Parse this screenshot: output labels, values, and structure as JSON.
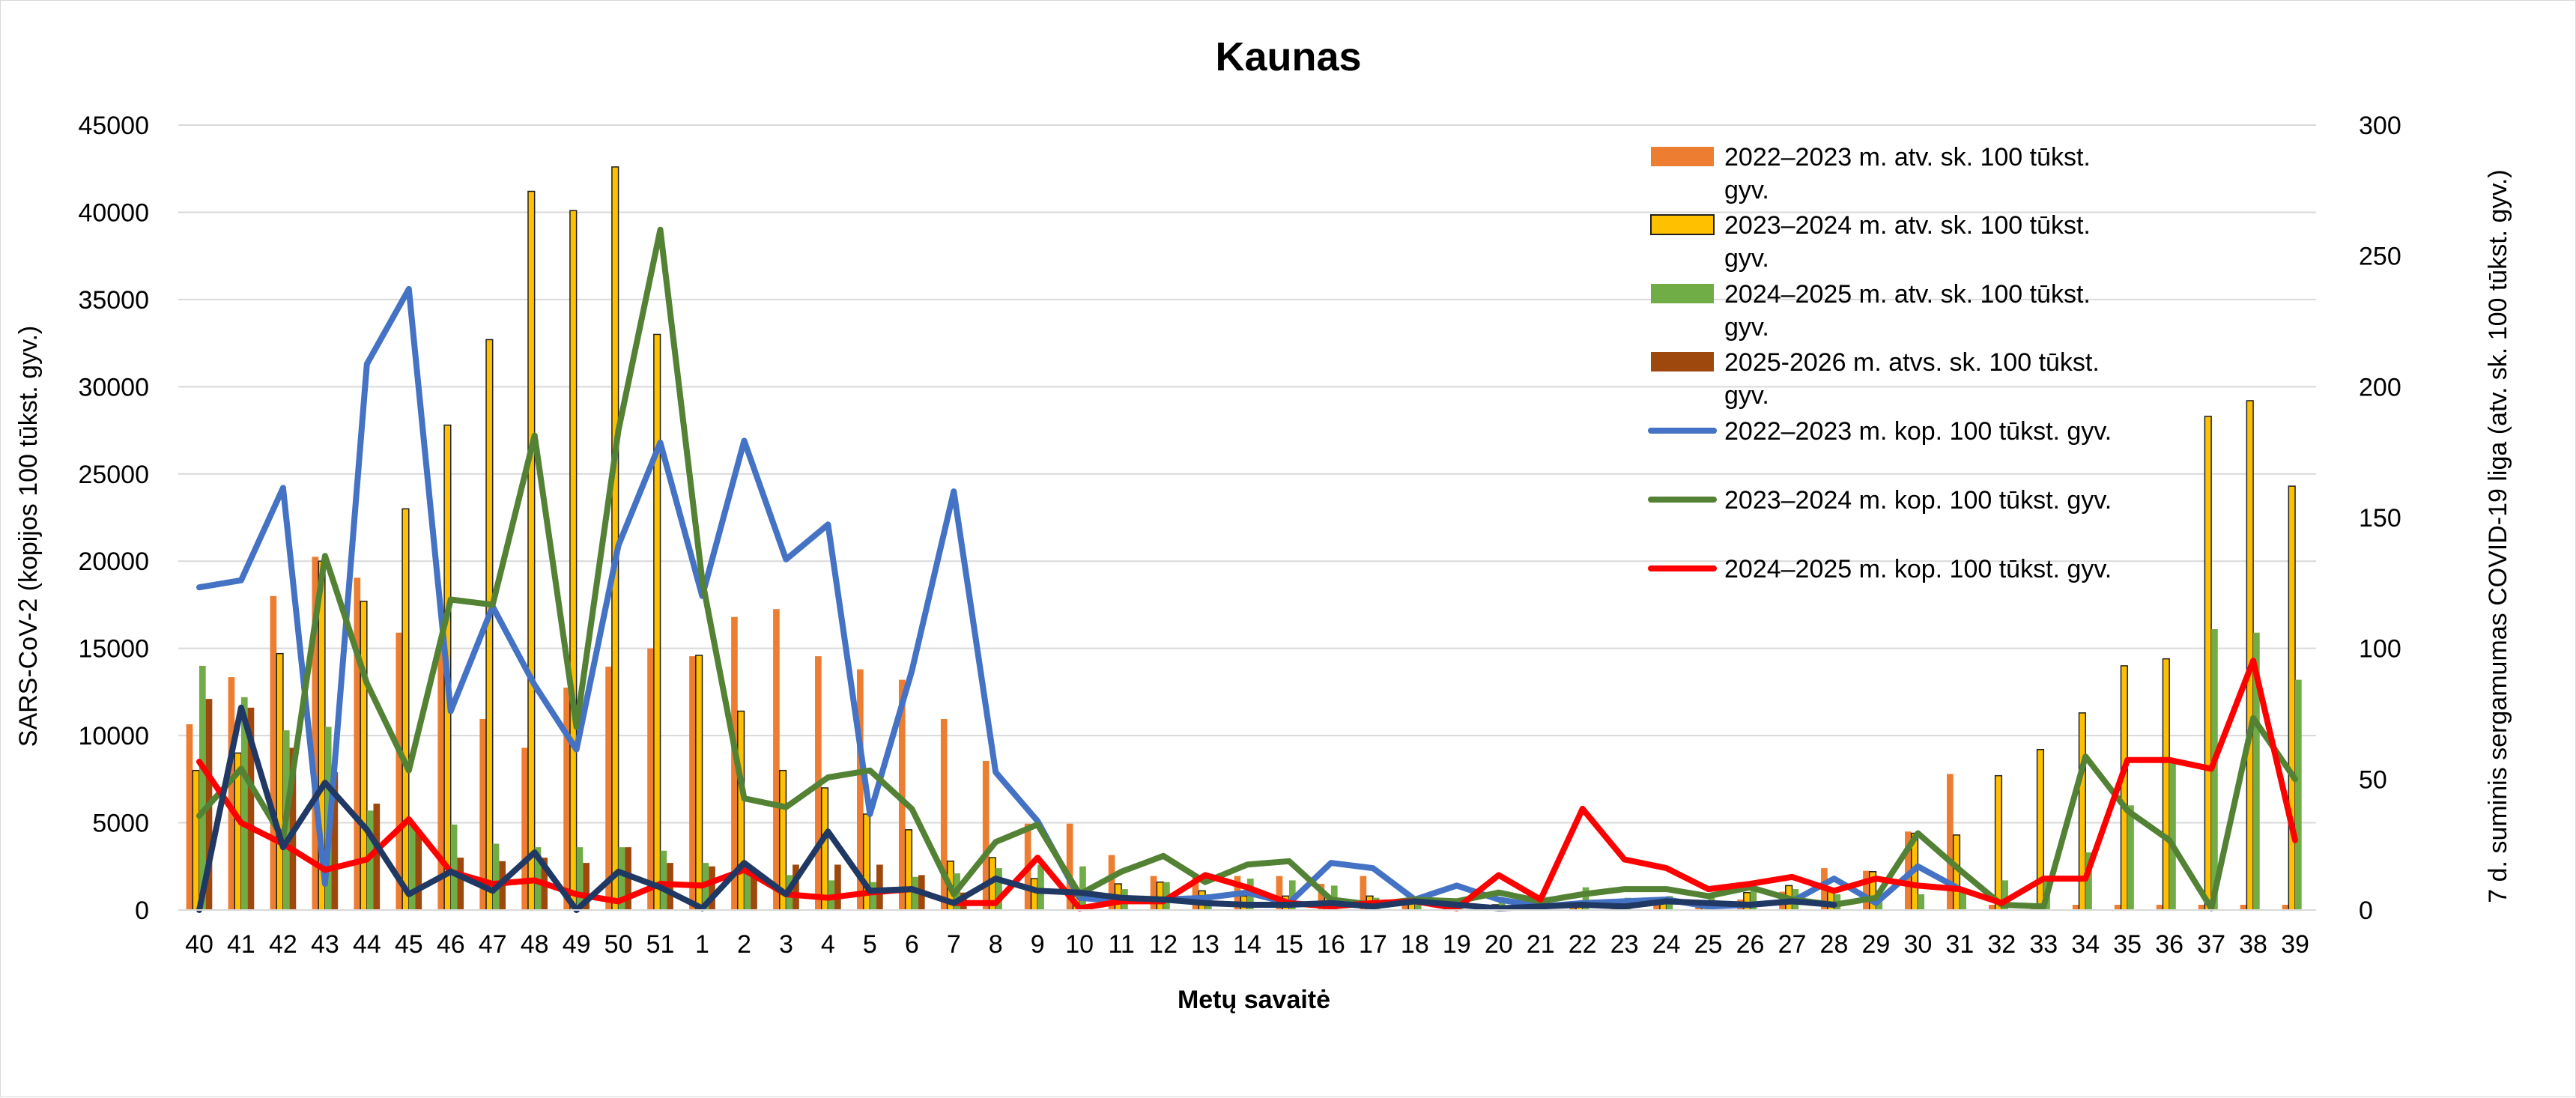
{
  "chart_data": {
    "type": "bar",
    "title": "Kaunas",
    "xlabel": "Metų savaitė",
    "ylabel": "SARS-CoV-2  (kopijos 100 tūkst. gyv.)",
    "y2label": "7 d. suminis sergamumas COVID-19 liga (atv. sk. 100 tūkst. gyv.)",
    "ylim": [
      0,
      45000
    ],
    "y2lim": [
      0,
      300
    ],
    "yticks": [
      "0",
      "5000",
      "10000",
      "15000",
      "20000",
      "25000",
      "30000",
      "35000",
      "40000",
      "45000"
    ],
    "y2ticks": [
      "0",
      "50",
      "100",
      "150",
      "200",
      "250",
      "300"
    ],
    "grid": true,
    "legend_position": "top-right",
    "categories": [
      "40",
      "41",
      "42",
      "43",
      "44",
      "45",
      "46",
      "47",
      "48",
      "49",
      "50",
      "51",
      "1",
      "2",
      "3",
      "4",
      "5",
      "6",
      "7",
      "8",
      "9",
      "10",
      "11",
      "12",
      "13",
      "14",
      "15",
      "16",
      "17",
      "18",
      "19",
      "20",
      "21",
      "22",
      "23",
      "24",
      "25",
      "26",
      "27",
      "28",
      "29",
      "30",
      "31",
      "32",
      "33",
      "34",
      "35",
      "36",
      "37",
      "38",
      "39"
    ],
    "bar_series": [
      {
        "name": "2022–2023 m. atv. sk. 100 tūkst. gyv.",
        "color": "#ed7d31",
        "axis": "right",
        "values": [
          71,
          89,
          120,
          135,
          127,
          106,
          102,
          73,
          62,
          85,
          93,
          100,
          97,
          112,
          115,
          97,
          92,
          88,
          73,
          57,
          33,
          33,
          21,
          13,
          13,
          13,
          13,
          10,
          13,
          3,
          3,
          2,
          2,
          2,
          2,
          3,
          3,
          4,
          7,
          16,
          15,
          30,
          52,
          2,
          2,
          2,
          2,
          2,
          2,
          2,
          2
        ]
      },
      {
        "name": "2023–2024 m. atv. sk. 100 tūkst. gyv.",
        "color": "#ffc000",
        "edge": "#1f1f1f",
        "axis": "left",
        "values": [
          8000,
          9000,
          14700,
          20000,
          17700,
          23000,
          27800,
          32700,
          41200,
          40100,
          42600,
          33000,
          14600,
          11400,
          8000,
          7000,
          5500,
          4600,
          2800,
          3000,
          1800,
          800,
          1500,
          1600,
          1100,
          800,
          800,
          800,
          800,
          400,
          300,
          300,
          200,
          400,
          300,
          400,
          300,
          1000,
          1400,
          1100,
          2200,
          4400,
          4300,
          7700,
          9200,
          11300,
          14000,
          14400,
          28300,
          29200,
          24300
        ]
      },
      {
        "name": "2024–2025 m. atv. sk. 100 tūkst. gyv.",
        "color": "#70ad47",
        "axis": "left",
        "values": [
          14000,
          12200,
          10300,
          10500,
          5700,
          4900,
          4900,
          3800,
          3600,
          3600,
          3600,
          3400,
          2700,
          2200,
          2000,
          1700,
          1600,
          1900,
          2100,
          2400,
          2600,
          2500,
          1200,
          1600,
          900,
          1800,
          1700,
          1400,
          700,
          400,
          300,
          500,
          300,
          1300,
          700,
          800,
          700,
          1300,
          1200,
          900,
          900,
          900,
          1200,
          1700,
          1800,
          3300,
          6000,
          8500,
          16100,
          15900,
          13200
        ]
      },
      {
        "name": "2025-2026 m. atvs. sk. 100 tūkst. gyv.",
        "color": "#9e480e",
        "axis": "left",
        "values": [
          12100,
          11600,
          9300,
          7900,
          6100,
          4600,
          3000,
          2800,
          3000,
          2700,
          3600,
          2700,
          2500,
          2300,
          2600,
          2600,
          2600,
          2000,
          1000,
          null,
          null,
          null,
          null,
          null,
          null,
          null,
          null,
          null,
          null,
          null,
          null,
          null,
          null,
          null,
          null,
          null,
          null,
          null,
          null,
          null,
          null,
          null,
          null,
          null,
          null,
          null,
          null,
          null,
          null,
          null,
          null
        ]
      }
    ],
    "line_series": [
      {
        "name": "2022–2023 m. kop. 100 tūkst. gyv.",
        "color": "#4472c4",
        "axis": "left",
        "values": [
          18500,
          18900,
          24200,
          1500,
          31300,
          35600,
          11400,
          17400,
          12900,
          9200,
          20900,
          26800,
          18000,
          26900,
          20100,
          22100,
          5500,
          13700,
          24000,
          7900,
          5100,
          700,
          500,
          600,
          700,
          1000,
          400,
          2700,
          2400,
          600,
          1400,
          600,
          200,
          400,
          500,
          600,
          200,
          300,
          500,
          1800,
          400,
          2500,
          1200,
          null,
          null,
          null,
          null,
          null,
          null,
          null,
          null
        ]
      },
      {
        "name": "2023–2024 m. kop. 100 tūkst. gyv.",
        "color": "#548235",
        "axis": "left",
        "values": [
          5400,
          8100,
          4100,
          20300,
          13000,
          8000,
          17800,
          17500,
          27200,
          10500,
          27500,
          39000,
          18900,
          6400,
          5900,
          7600,
          8000,
          5800,
          900,
          3900,
          4900,
          900,
          2200,
          3100,
          1600,
          2600,
          2800,
          600,
          300,
          600,
          500,
          1000,
          500,
          900,
          1200,
          1200,
          800,
          1300,
          600,
          300,
          700,
          4400,
          2300,
          300,
          200,
          8800,
          5700,
          4000,
          100,
          11000,
          7500
        ]
      },
      {
        "name": "2024–2025 m. kop. 100 tūkst. gyv.",
        "color": "#ff0000",
        "axis": "left",
        "values": [
          8500,
          5000,
          3800,
          2300,
          2900,
          5200,
          2200,
          1500,
          1700,
          900,
          500,
          1500,
          1400,
          2300,
          900,
          700,
          1000,
          1200,
          400,
          400,
          3000,
          100,
          500,
          500,
          2000,
          1300,
          400,
          200,
          400,
          500,
          100,
          2000,
          600,
          5800,
          2900,
          2400,
          1200,
          1500,
          1900,
          1100,
          1800,
          1400,
          1200,
          400,
          1800,
          1800,
          8600,
          8600,
          8100,
          14300,
          4000
        ]
      },
      {
        "name": "2025-2026 m. kop. 100 tūkst. gyv.",
        "color": "#203864",
        "axis": "left",
        "values": [
          0,
          11600,
          3600,
          7300,
          4600,
          900,
          2200,
          1100,
          3300,
          0,
          2200,
          1300,
          100,
          2700,
          900,
          4500,
          1100,
          1200,
          400,
          1800,
          1100,
          1000,
          700,
          600,
          400,
          300,
          300,
          400,
          200,
          500,
          300,
          100,
          200,
          300,
          200,
          500,
          400,
          300,
          500,
          300,
          null,
          null,
          null,
          null,
          null,
          null,
          null,
          null,
          null,
          null,
          null
        ]
      }
    ],
    "legend": [
      {
        "label": "2022–2023 m. atv. sk. 100 tūkst. gyv.",
        "kind": "bar",
        "color": "#ed7d31"
      },
      {
        "label": "2023–2024 m. atv. sk. 100 tūkst. gyv.",
        "kind": "bar",
        "color": "#ffc000",
        "edge": "#1f1f1f"
      },
      {
        "label": "2024–2025 m. atv. sk. 100 tūkst. gyv.",
        "kind": "bar",
        "color": "#70ad47"
      },
      {
        "label": "2025-2026 m. atvs. sk. 100 tūkst. gyv.",
        "kind": "bar",
        "color": "#9e480e"
      },
      {
        "label": "2022–2023 m. kop. 100 tūkst. gyv.",
        "kind": "line",
        "color": "#4472c4"
      },
      {
        "label": "2023–2024 m. kop. 100 tūkst. gyv.",
        "kind": "line",
        "color": "#548235"
      },
      {
        "label": "2024–2025 m. kop. 100 tūkst. gyv.",
        "kind": "line",
        "color": "#ff0000"
      }
    ]
  }
}
